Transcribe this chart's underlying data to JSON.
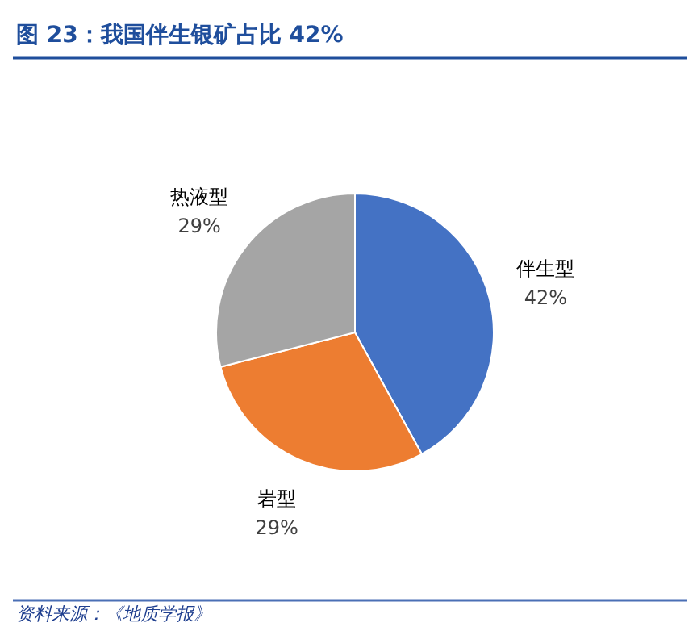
{
  "chart_data": {
    "type": "pie",
    "title": "图 23：我国伴生银矿占比 42%",
    "categories": [
      "伴生型",
      "岩型",
      "热液型"
    ],
    "values": [
      42,
      29,
      29
    ],
    "value_labels": [
      "42%",
      "29%",
      "29%"
    ],
    "colors": [
      "#4472c4",
      "#ed7d31",
      "#a5a5a5"
    ],
    "annotations": [
      "资料来源：《地质学报》"
    ]
  }
}
